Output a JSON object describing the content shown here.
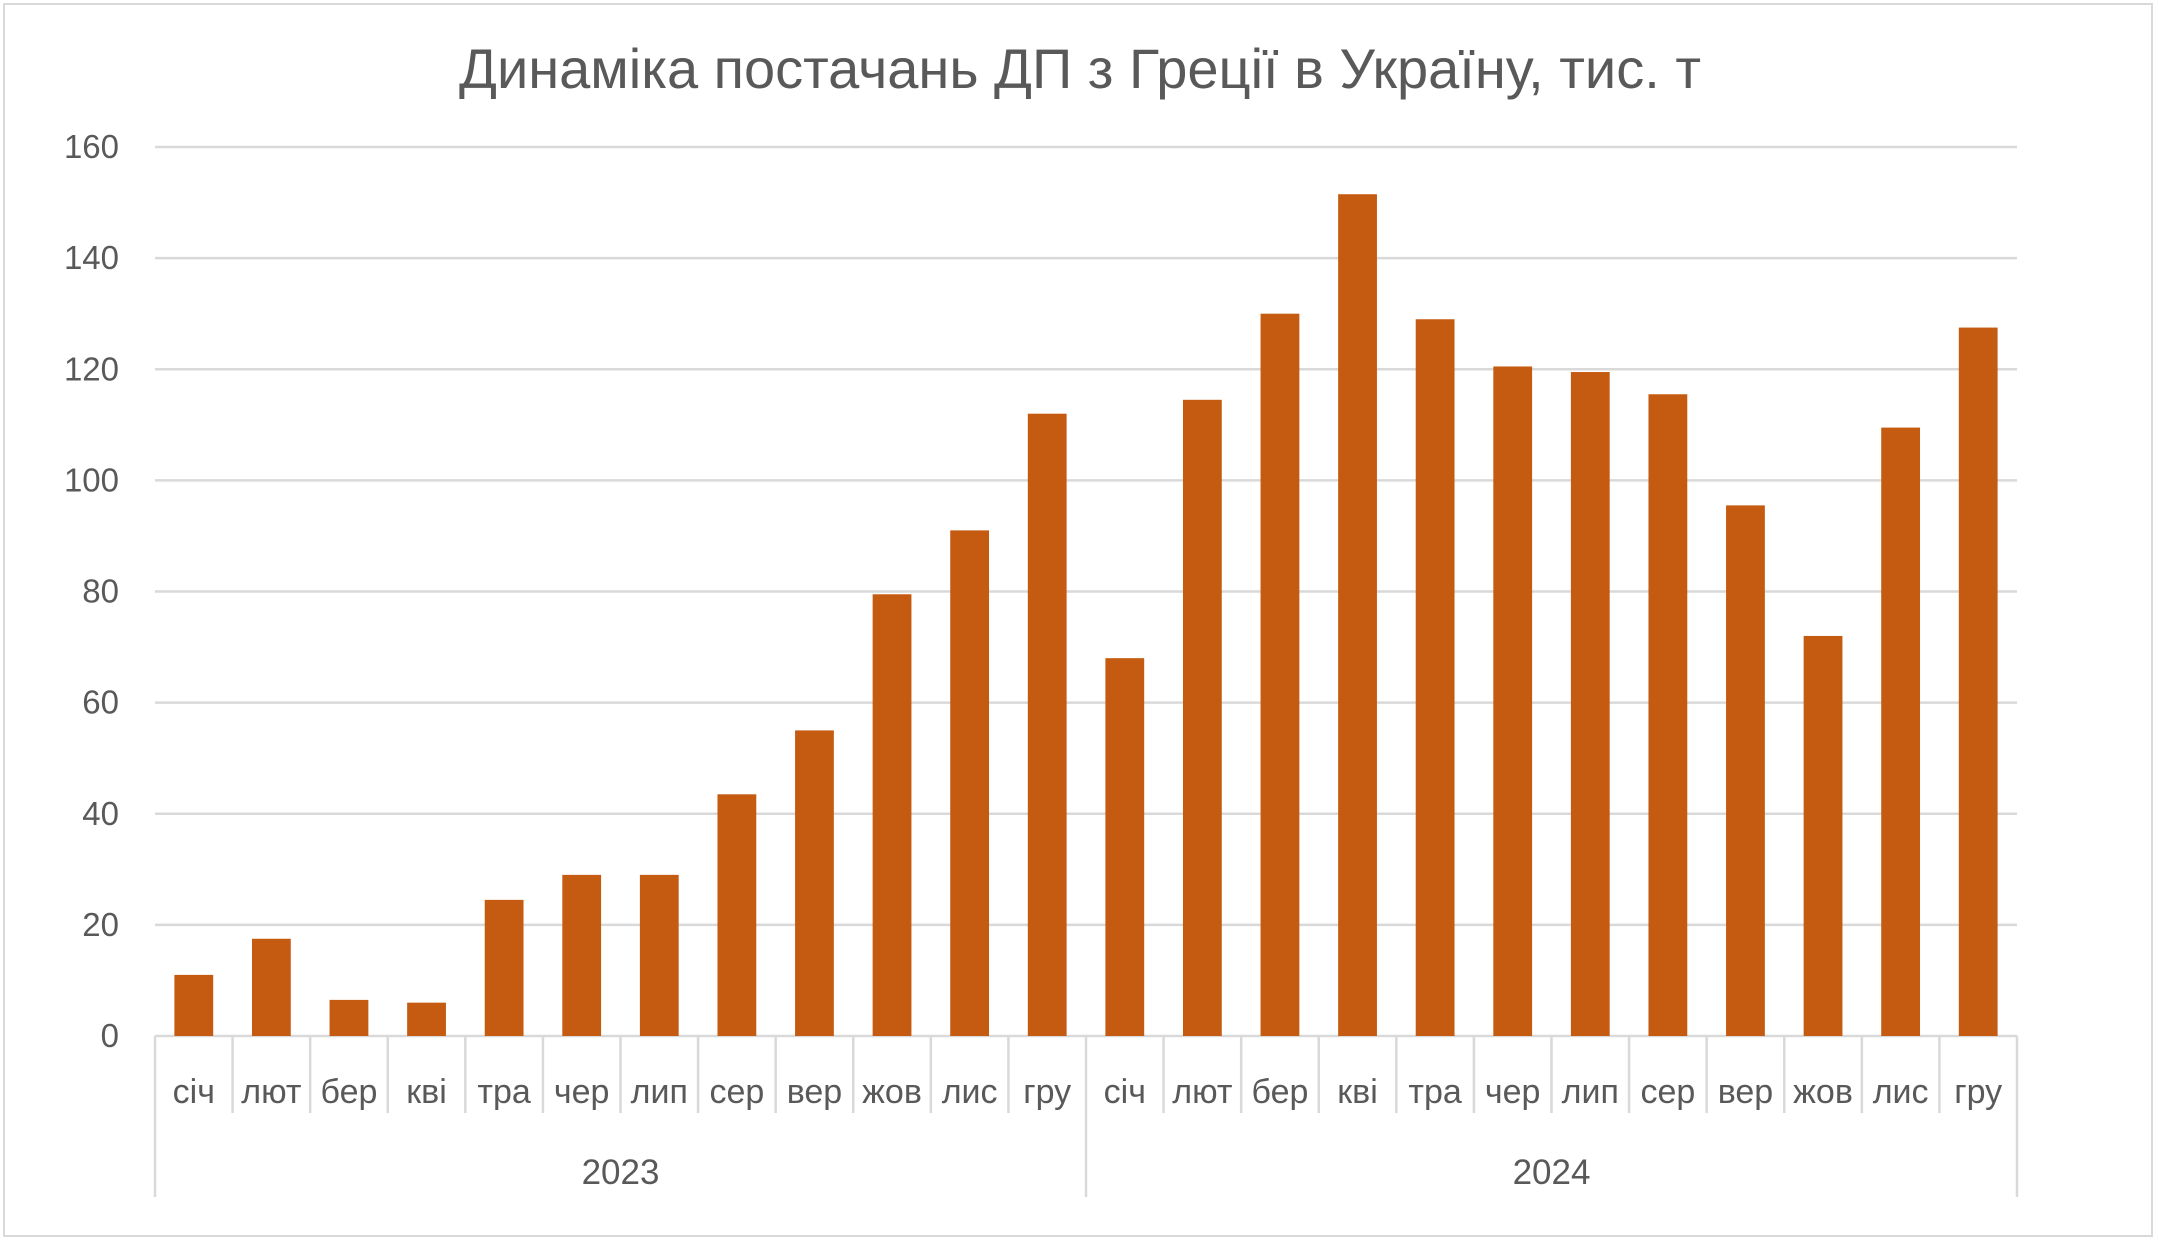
{
  "chart_data": {
    "type": "bar",
    "title": "Динаміка постачань ДП з Греції в Україну, тис. т",
    "xlabel": "",
    "ylabel": "",
    "ylim": [
      0,
      160
    ],
    "yticks": [
      0,
      20,
      40,
      60,
      80,
      100,
      120,
      140,
      160
    ],
    "grid": true,
    "legend": "none",
    "bar_color": "#c55a11",
    "groups": [
      {
        "label": "2023",
        "categories": [
          "січ",
          "лют",
          "бер",
          "кві",
          "тра",
          "чер",
          "лип",
          "сер",
          "вер",
          "жов",
          "лис",
          "гру"
        ]
      },
      {
        "label": "2024",
        "categories": [
          "січ",
          "лют",
          "бер",
          "кві",
          "тра",
          "чер",
          "лип",
          "сер",
          "вер",
          "жов",
          "лис",
          "гру"
        ]
      }
    ],
    "values": [
      11,
      17.5,
      6.5,
      6,
      24.5,
      29,
      29,
      43.5,
      55,
      79.5,
      91,
      112,
      68,
      114.5,
      130,
      151.5,
      129,
      120.5,
      119.5,
      115.5,
      95.5,
      72,
      109.5,
      127.5
    ]
  }
}
